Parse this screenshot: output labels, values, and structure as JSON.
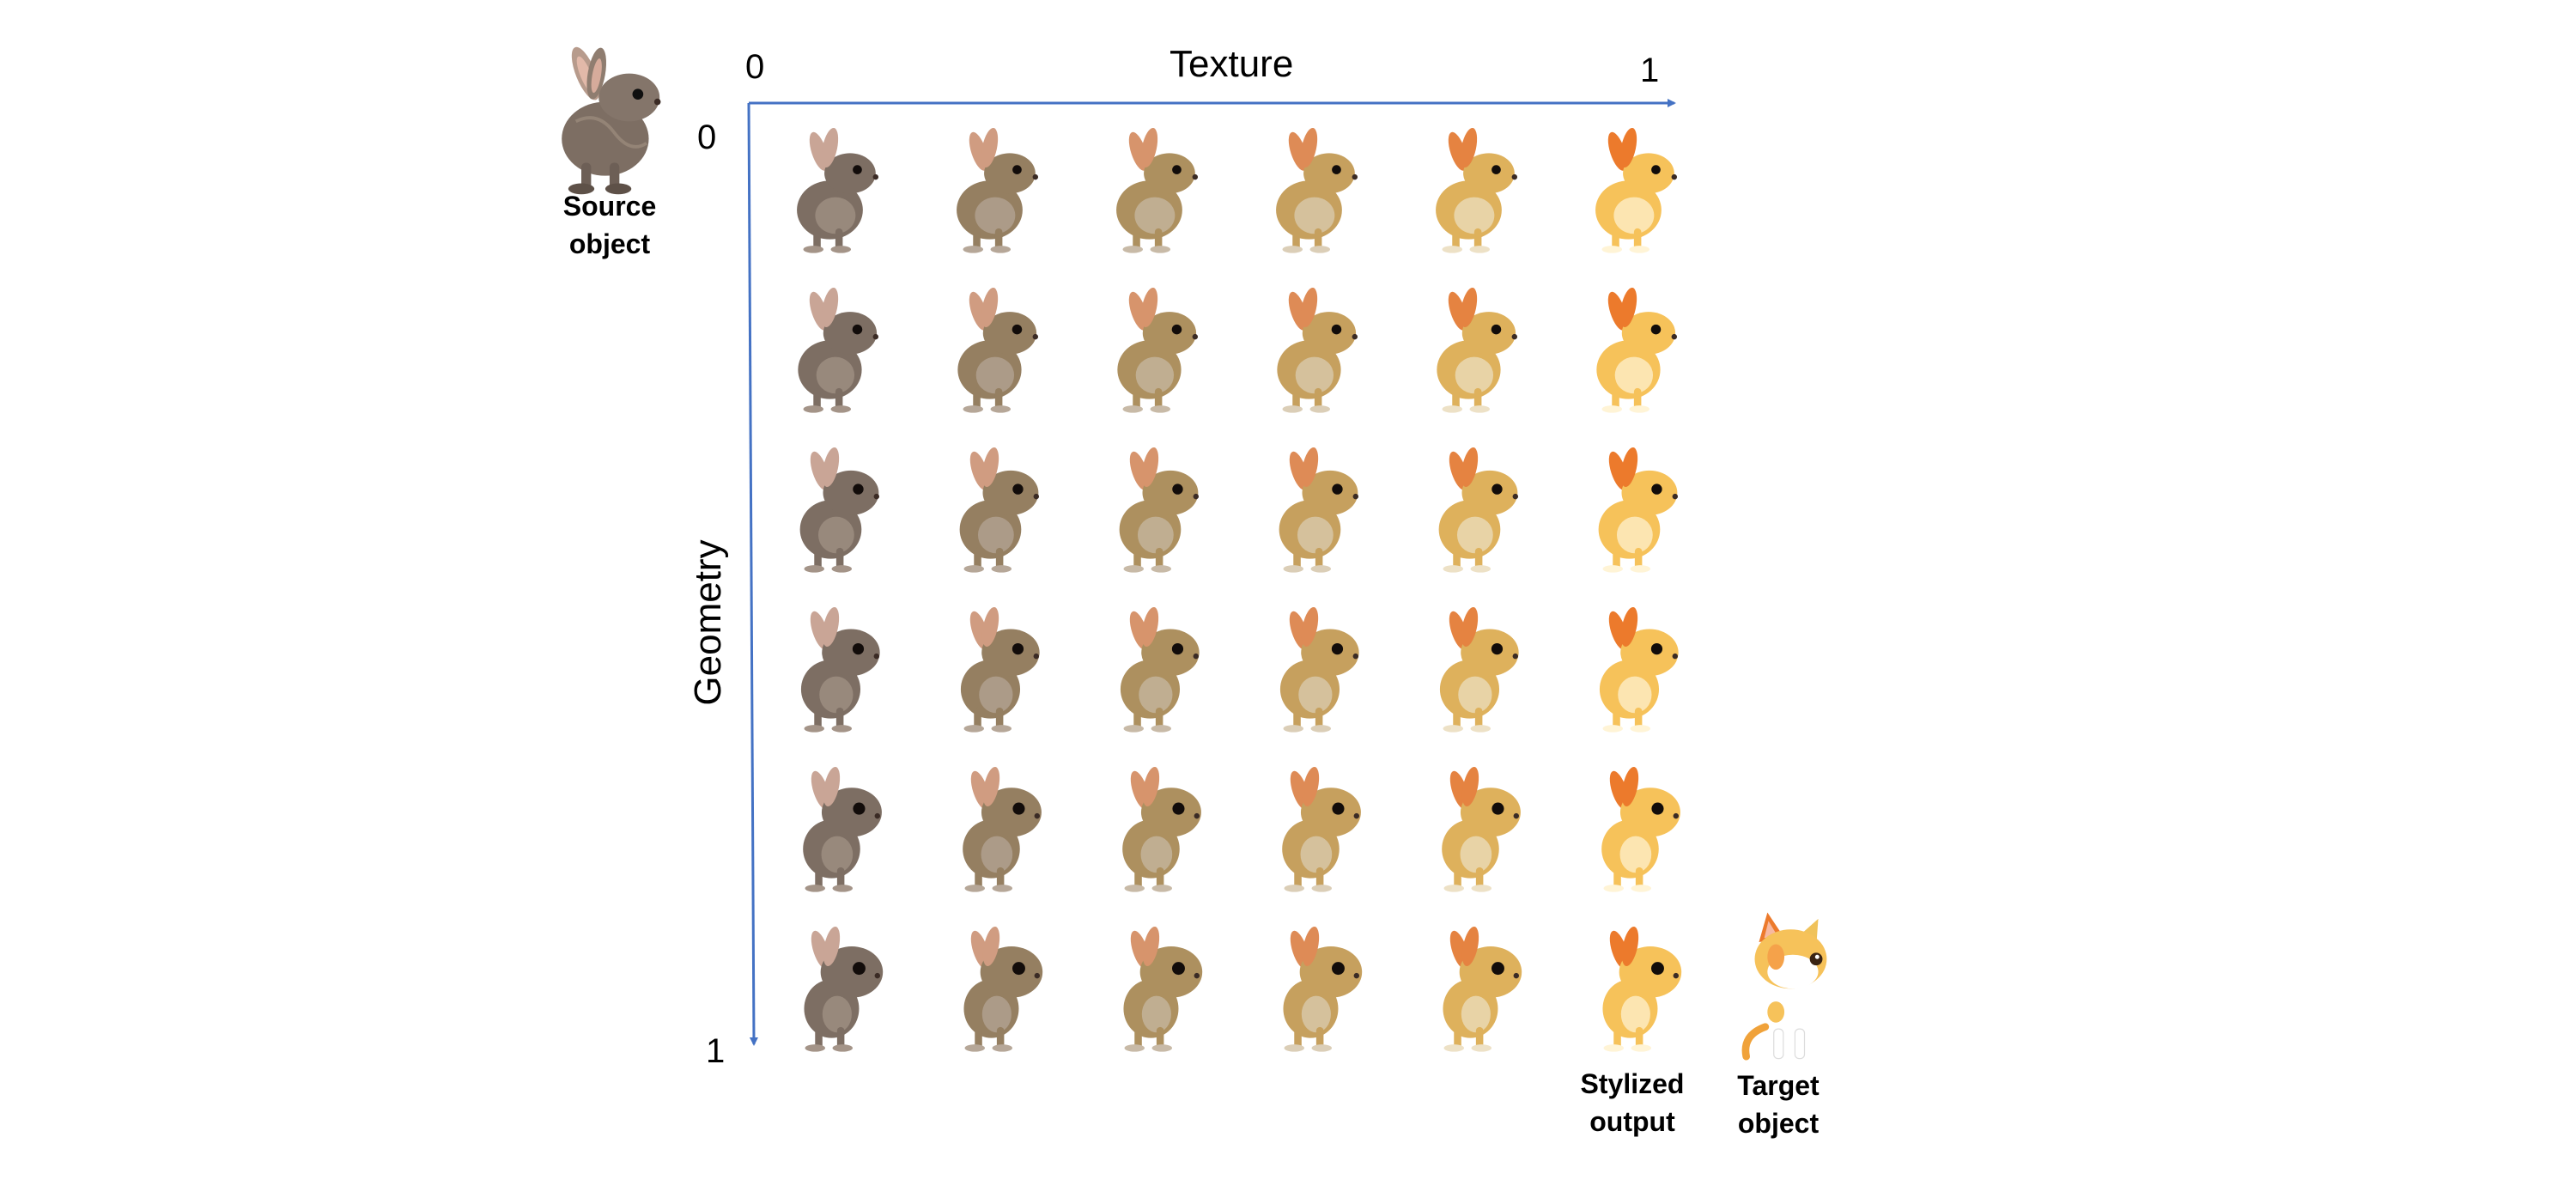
{
  "axes": {
    "texture": {
      "title": "Texture",
      "start": "0",
      "end": "1"
    },
    "geometry": {
      "title": "Geometry",
      "start": "0",
      "end": "1"
    }
  },
  "captions": {
    "source": {
      "line1": "Source",
      "line2": "object"
    },
    "stylized": {
      "line1": "Stylized",
      "line2": "output"
    },
    "target": {
      "line1": "Target",
      "line2": "object"
    }
  },
  "grid": {
    "rows": 6,
    "cols": 6
  },
  "colors": {
    "axis": "#4472c4",
    "source_fur": "#7d6e63",
    "target_fur": "#f6c25a",
    "target_ear": "#ec7a2c"
  }
}
